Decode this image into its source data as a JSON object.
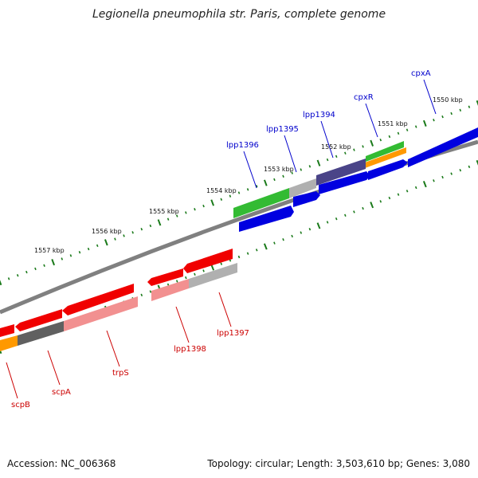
{
  "title": "Legionella pneumophila str. Paris, complete genome",
  "footer": {
    "accession": "Accession: NC_006368",
    "summary": "Topology: circular; Length: 3,503,610 bp; Genes: 3,080"
  },
  "scale_labels": [
    "1550 kbp",
    "1551 kbp",
    "1552 kbp",
    "1553 kbp",
    "1554 kbp",
    "1555 kbp",
    "1556 kbp",
    "1557 kbp"
  ],
  "genes_forward": [
    "cpxA",
    "cpxR",
    "lpp1394",
    "lpp1395",
    "lpp1396"
  ],
  "genes_reverse": [
    "lpp1397",
    "lpp1398",
    "trpS",
    "scpA",
    "scpB"
  ],
  "colors": {
    "forward_label": "#0000cc",
    "reverse_label": "#cc0000",
    "backbone": "#808080",
    "ticks": "#1a7a1a",
    "blue": "#0000e0",
    "red": "#f00000",
    "green": "#33bb33",
    "grey": "#b0b0b0",
    "purple": "#4a4488",
    "orange": "#ff9900",
    "pink": "#f29090",
    "dark_grey": "#606060"
  }
}
